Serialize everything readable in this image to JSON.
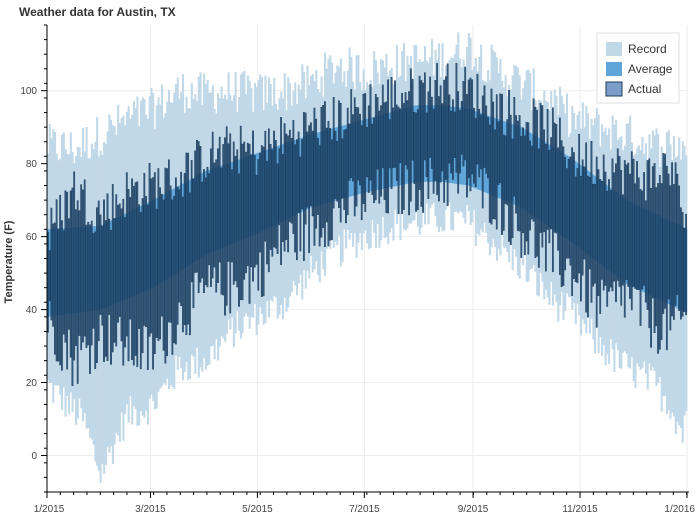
{
  "chart_data": {
    "type": "bar",
    "title": "Weather data for Austin, TX",
    "xlabel": "",
    "ylabel": "Temperature (F)",
    "ylim": [
      -10,
      118
    ],
    "yticks": [
      0,
      20,
      40,
      60,
      80,
      100
    ],
    "xticks": [
      "1/2015",
      "3/2015",
      "5/2015",
      "7/2015",
      "9/2015",
      "11/2015",
      "1/2016"
    ],
    "grid": true,
    "legend": "top-right",
    "x_domain_days": [
      0,
      365
    ],
    "series": [
      {
        "name": "Record",
        "color": "#c0d8e8",
        "description": "daily record low to record high",
        "low": [
          [
            0,
            19
          ],
          [
            20,
            10
          ],
          [
            30,
            -5
          ],
          [
            45,
            11
          ],
          [
            60,
            14
          ],
          [
            75,
            24
          ],
          [
            90,
            26
          ],
          [
            105,
            34
          ],
          [
            120,
            38
          ],
          [
            135,
            42
          ],
          [
            150,
            50
          ],
          [
            165,
            56
          ],
          [
            180,
            60
          ],
          [
            195,
            63
          ],
          [
            210,
            64
          ],
          [
            225,
            65
          ],
          [
            240,
            64
          ],
          [
            255,
            58
          ],
          [
            270,
            52
          ],
          [
            285,
            44
          ],
          [
            300,
            38
          ],
          [
            315,
            30
          ],
          [
            330,
            24
          ],
          [
            345,
            20
          ],
          [
            355,
            14
          ],
          [
            362,
            6
          ],
          [
            365,
            18
          ]
        ],
        "high": [
          [
            0,
            85
          ],
          [
            15,
            84
          ],
          [
            30,
            88
          ],
          [
            45,
            92
          ],
          [
            60,
            95
          ],
          [
            75,
            100
          ],
          [
            90,
            99
          ],
          [
            105,
            100
          ],
          [
            120,
            99
          ],
          [
            135,
            100
          ],
          [
            150,
            102
          ],
          [
            165,
            107
          ],
          [
            180,
            105
          ],
          [
            195,
            107
          ],
          [
            210,
            108
          ],
          [
            225,
            109
          ],
          [
            240,
            112
          ],
          [
            255,
            106
          ],
          [
            270,
            102
          ],
          [
            285,
            98
          ],
          [
            300,
            92
          ],
          [
            315,
            90
          ],
          [
            330,
            88
          ],
          [
            345,
            85
          ],
          [
            355,
            85
          ],
          [
            365,
            85
          ]
        ]
      },
      {
        "name": "Average",
        "color": "#5fa5d9",
        "description": "daily average low to average high",
        "low": [
          [
            0,
            38
          ],
          [
            30,
            40
          ],
          [
            60,
            46
          ],
          [
            90,
            55
          ],
          [
            120,
            61
          ],
          [
            150,
            68
          ],
          [
            180,
            72
          ],
          [
            210,
            75
          ],
          [
            225,
            75
          ],
          [
            240,
            74
          ],
          [
            270,
            68
          ],
          [
            300,
            58
          ],
          [
            330,
            47
          ],
          [
            365,
            39
          ]
        ],
        "high": [
          [
            0,
            62
          ],
          [
            30,
            63
          ],
          [
            60,
            70
          ],
          [
            90,
            78
          ],
          [
            120,
            83
          ],
          [
            150,
            88
          ],
          [
            180,
            92
          ],
          [
            210,
            96
          ],
          [
            225,
            96
          ],
          [
            240,
            95
          ],
          [
            270,
            90
          ],
          [
            300,
            81
          ],
          [
            330,
            70
          ],
          [
            365,
            62
          ]
        ]
      },
      {
        "name": "Actual",
        "color": "#1f4a72",
        "description": "daily actual low to actual high",
        "low": [
          [
            0,
            37
          ],
          [
            15,
            26
          ],
          [
            30,
            33
          ],
          [
            45,
            30
          ],
          [
            60,
            28
          ],
          [
            75,
            38
          ],
          [
            90,
            45
          ],
          [
            105,
            46
          ],
          [
            120,
            50
          ],
          [
            135,
            58
          ],
          [
            150,
            62
          ],
          [
            165,
            67
          ],
          [
            180,
            70
          ],
          [
            195,
            72
          ],
          [
            210,
            74
          ],
          [
            225,
            75
          ],
          [
            240,
            76
          ],
          [
            255,
            70
          ],
          [
            270,
            62
          ],
          [
            285,
            55
          ],
          [
            300,
            50
          ],
          [
            315,
            40
          ],
          [
            330,
            44
          ],
          [
            345,
            36
          ],
          [
            355,
            35
          ],
          [
            365,
            38
          ]
        ],
        "high": [
          [
            0,
            60
          ],
          [
            15,
            73
          ],
          [
            30,
            66
          ],
          [
            45,
            72
          ],
          [
            60,
            74
          ],
          [
            75,
            76
          ],
          [
            90,
            82
          ],
          [
            105,
            84
          ],
          [
            120,
            83
          ],
          [
            135,
            87
          ],
          [
            150,
            90
          ],
          [
            165,
            92
          ],
          [
            180,
            96
          ],
          [
            195,
            98
          ],
          [
            210,
            100
          ],
          [
            225,
            102
          ],
          [
            240,
            100
          ],
          [
            255,
            96
          ],
          [
            270,
            92
          ],
          [
            285,
            90
          ],
          [
            300,
            82
          ],
          [
            315,
            80
          ],
          [
            330,
            78
          ],
          [
            345,
            76
          ],
          [
            355,
            80
          ],
          [
            365,
            62
          ]
        ]
      }
    ]
  }
}
